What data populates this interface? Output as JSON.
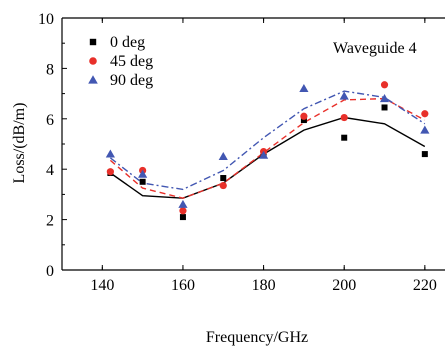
{
  "chart_data": {
    "type": "scatter",
    "annotation": "Waveguide 4",
    "xlabel": "Frequency/GHz",
    "ylabel": "Loss/(dB/m)",
    "xlim": [
      130,
      225
    ],
    "ylim": [
      0,
      10
    ],
    "xticks": [
      140,
      160,
      180,
      200,
      220
    ],
    "yticks": [
      0,
      2,
      4,
      6,
      8,
      10
    ],
    "legend_position": "top-left",
    "grid": false,
    "series": [
      {
        "name": "0 deg",
        "color": "#000000",
        "marker": "square",
        "line_style": "solid",
        "points": [
          [
            142,
            3.85
          ],
          [
            150,
            3.5
          ],
          [
            160,
            2.1
          ],
          [
            170,
            3.65
          ],
          [
            180,
            4.6
          ],
          [
            190,
            5.95
          ],
          [
            200,
            5.25
          ],
          [
            210,
            6.45
          ],
          [
            220,
            4.6
          ]
        ],
        "fit": [
          [
            142,
            3.85
          ],
          [
            150,
            2.95
          ],
          [
            160,
            2.85
          ],
          [
            170,
            3.45
          ],
          [
            180,
            4.6
          ],
          [
            190,
            5.55
          ],
          [
            200,
            6.05
          ],
          [
            210,
            5.8
          ],
          [
            220,
            4.9
          ]
        ]
      },
      {
        "name": "45 deg",
        "color": "#e8302a",
        "marker": "circle",
        "line_style": "dashed",
        "points": [
          [
            142,
            3.9
          ],
          [
            150,
            3.95
          ],
          [
            160,
            2.35
          ],
          [
            170,
            3.35
          ],
          [
            180,
            4.7
          ],
          [
            190,
            6.1
          ],
          [
            200,
            6.05
          ],
          [
            210,
            7.35
          ],
          [
            220,
            6.2
          ]
        ],
        "fit": [
          [
            142,
            4.35
          ],
          [
            150,
            3.25
          ],
          [
            160,
            2.85
          ],
          [
            170,
            3.45
          ],
          [
            180,
            4.65
          ],
          [
            190,
            5.85
          ],
          [
            200,
            6.75
          ],
          [
            210,
            6.8
          ],
          [
            220,
            5.95
          ]
        ]
      },
      {
        "name": "90 deg",
        "color": "#4257b2",
        "marker": "triangle",
        "line_style": "dash-dot",
        "points": [
          [
            142,
            4.6
          ],
          [
            150,
            3.8
          ],
          [
            160,
            2.6
          ],
          [
            170,
            4.5
          ],
          [
            180,
            4.55
          ],
          [
            190,
            7.2
          ],
          [
            200,
            6.9
          ],
          [
            210,
            6.8
          ],
          [
            220,
            5.55
          ]
        ],
        "fit": [
          [
            142,
            4.45
          ],
          [
            150,
            3.45
          ],
          [
            160,
            3.2
          ],
          [
            170,
            3.95
          ],
          [
            180,
            5.25
          ],
          [
            190,
            6.4
          ],
          [
            200,
            7.1
          ],
          [
            210,
            6.85
          ],
          [
            220,
            5.8
          ]
        ]
      }
    ]
  }
}
